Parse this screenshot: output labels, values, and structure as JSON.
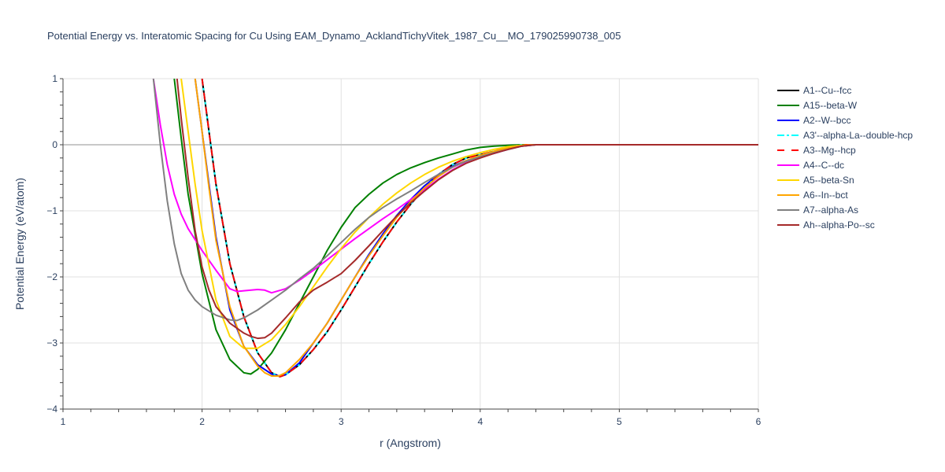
{
  "chart_data": {
    "type": "line",
    "title": "Potential Energy vs. Interatomic Spacing for Cu Using EAM_Dynamo_AcklandTichyVitek_1987_Cu__MO_179025990738_005",
    "xlabel": "r (Angstrom)",
    "ylabel": "Potential Energy (eV/atom)",
    "xlim": [
      1,
      6
    ],
    "ylim": [
      -4,
      1
    ],
    "x_ticks": [
      "1",
      "2",
      "3",
      "4",
      "5",
      "6"
    ],
    "y_ticks": [
      "1",
      "0",
      "−1",
      "−2",
      "−3",
      "−4"
    ],
    "grid": true,
    "legend_position": "right",
    "series": [
      {
        "name": "A1--Cu--fcc",
        "color": "#000000",
        "dash": "solid",
        "x": [
          2.0,
          2.05,
          2.1,
          2.2,
          2.3,
          2.4,
          2.5,
          2.56,
          2.6,
          2.7,
          2.8,
          2.9,
          3.0,
          3.1,
          3.2,
          3.3,
          3.4,
          3.5,
          3.6,
          3.7,
          3.8,
          3.9,
          4.0,
          4.1,
          4.2,
          4.3,
          4.4,
          5.0,
          6.0
        ],
        "y": [
          1.0,
          0.2,
          -0.6,
          -1.8,
          -2.6,
          -3.15,
          -3.45,
          -3.51,
          -3.48,
          -3.33,
          -3.1,
          -2.83,
          -2.5,
          -2.15,
          -1.8,
          -1.47,
          -1.17,
          -0.9,
          -0.66,
          -0.45,
          -0.3,
          -0.2,
          -0.15,
          -0.1,
          -0.04,
          0.0,
          0.0,
          0.0,
          0.0
        ]
      },
      {
        "name": "A15--beta-W",
        "color": "#008000",
        "dash": "solid",
        "x": [
          1.8,
          1.85,
          1.9,
          2.0,
          2.1,
          2.2,
          2.3,
          2.35,
          2.4,
          2.5,
          2.6,
          2.7,
          2.8,
          2.9,
          3.0,
          3.1,
          3.2,
          3.3,
          3.4,
          3.5,
          3.6,
          3.7,
          3.8,
          3.9,
          4.0,
          4.1,
          4.2,
          4.3,
          4.4,
          5.0,
          6.0
        ],
        "y": [
          1.0,
          0.1,
          -0.75,
          -1.95,
          -2.8,
          -3.25,
          -3.45,
          -3.47,
          -3.4,
          -3.15,
          -2.8,
          -2.4,
          -2.0,
          -1.6,
          -1.25,
          -0.95,
          -0.75,
          -0.58,
          -0.45,
          -0.35,
          -0.27,
          -0.2,
          -0.14,
          -0.08,
          -0.04,
          -0.02,
          -0.01,
          0.0,
          0.0,
          0.0,
          0.0
        ]
      },
      {
        "name": "A2--W--bcc",
        "color": "#0000ff",
        "dash": "solid",
        "x": [
          1.95,
          2.0,
          2.05,
          2.1,
          2.2,
          2.3,
          2.4,
          2.5,
          2.55,
          2.6,
          2.7,
          2.8,
          2.9,
          3.0,
          3.1,
          3.2,
          3.3,
          3.4,
          3.5,
          3.6,
          3.7,
          3.8,
          3.9,
          4.0,
          4.1,
          4.2,
          4.3,
          4.4,
          5.0,
          6.0
        ],
        "y": [
          1.0,
          0.2,
          -0.6,
          -1.4,
          -2.5,
          -3.05,
          -3.33,
          -3.47,
          -3.5,
          -3.48,
          -3.3,
          -3.0,
          -2.7,
          -2.35,
          -2.0,
          -1.66,
          -1.35,
          -1.07,
          -0.83,
          -0.62,
          -0.45,
          -0.33,
          -0.24,
          -0.18,
          -0.13,
          -0.07,
          -0.02,
          0.0,
          0.0,
          0.0
        ]
      },
      {
        "name": "A3'--alpha-La--double-hcp",
        "color": "#00ffff",
        "dash": "dashdot",
        "x": [
          2.0,
          2.05,
          2.1,
          2.2,
          2.3,
          2.4,
          2.5,
          2.56,
          2.6,
          2.7,
          2.8,
          2.9,
          3.0,
          3.1,
          3.2,
          3.3,
          3.4,
          3.5,
          3.6,
          3.7,
          3.8,
          3.9,
          4.0,
          4.1,
          4.2,
          4.3,
          4.4,
          5.0,
          6.0
        ],
        "y": [
          1.0,
          0.2,
          -0.6,
          -1.8,
          -2.6,
          -3.15,
          -3.45,
          -3.51,
          -3.48,
          -3.33,
          -3.1,
          -2.83,
          -2.5,
          -2.15,
          -1.8,
          -1.47,
          -1.17,
          -0.9,
          -0.66,
          -0.45,
          -0.3,
          -0.2,
          -0.15,
          -0.1,
          -0.04,
          0.0,
          0.0,
          0.0,
          0.0
        ]
      },
      {
        "name": "A3--Mg--hcp",
        "color": "#ff0000",
        "dash": "dash",
        "x": [
          2.0,
          2.05,
          2.1,
          2.2,
          2.3,
          2.4,
          2.5,
          2.56,
          2.6,
          2.7,
          2.8,
          2.9,
          3.0,
          3.1,
          3.2,
          3.3,
          3.4,
          3.5,
          3.6,
          3.7,
          3.8,
          3.9,
          4.0,
          4.1,
          4.2,
          4.3,
          4.4,
          5.0,
          6.0
        ],
        "y": [
          1.0,
          0.2,
          -0.6,
          -1.8,
          -2.6,
          -3.15,
          -3.45,
          -3.51,
          -3.48,
          -3.33,
          -3.1,
          -2.83,
          -2.5,
          -2.15,
          -1.8,
          -1.47,
          -1.17,
          -0.9,
          -0.66,
          -0.45,
          -0.3,
          -0.2,
          -0.15,
          -0.1,
          -0.04,
          0.0,
          0.0,
          0.0,
          0.0
        ]
      },
      {
        "name": "A4--C--dc",
        "color": "#ff00ff",
        "dash": "solid",
        "x": [
          1.65,
          1.7,
          1.75,
          1.8,
          1.85,
          1.9,
          2.0,
          2.1,
          2.2,
          2.25,
          2.3,
          2.4,
          2.45,
          2.5,
          2.6,
          2.7,
          2.8,
          2.9,
          3.0,
          3.1,
          3.2,
          3.3,
          3.4,
          3.5,
          3.6,
          3.7,
          3.8,
          3.9,
          4.0,
          4.1,
          4.2,
          4.3,
          4.4,
          5.0,
          6.0
        ],
        "y": [
          1.0,
          0.3,
          -0.3,
          -0.75,
          -1.05,
          -1.27,
          -1.6,
          -1.9,
          -2.18,
          -2.22,
          -2.21,
          -2.19,
          -2.2,
          -2.24,
          -2.18,
          -2.05,
          -1.9,
          -1.74,
          -1.58,
          -1.42,
          -1.27,
          -1.12,
          -0.98,
          -0.83,
          -0.68,
          -0.52,
          -0.38,
          -0.27,
          -0.19,
          -0.12,
          -0.06,
          -0.01,
          0.0,
          0.0,
          0.0
        ]
      },
      {
        "name": "A5--beta-Sn",
        "color": "#ffd700",
        "dash": "solid",
        "x": [
          1.85,
          1.9,
          1.95,
          2.0,
          2.1,
          2.2,
          2.3,
          2.4,
          2.5,
          2.6,
          2.7,
          2.8,
          2.9,
          3.0,
          3.1,
          3.2,
          3.3,
          3.4,
          3.5,
          3.6,
          3.7,
          3.8,
          3.9,
          4.0,
          4.1,
          4.2,
          4.3,
          4.4,
          5.0,
          6.0
        ],
        "y": [
          1.0,
          0.2,
          -0.6,
          -1.3,
          -2.35,
          -2.9,
          -3.08,
          -3.08,
          -2.95,
          -2.72,
          -2.45,
          -2.15,
          -1.85,
          -1.57,
          -1.32,
          -1.1,
          -0.9,
          -0.73,
          -0.58,
          -0.45,
          -0.34,
          -0.25,
          -0.18,
          -0.12,
          -0.07,
          -0.03,
          -0.01,
          0.0,
          0.0,
          0.0
        ]
      },
      {
        "name": "A6--In--bct",
        "color": "#ffa500",
        "dash": "solid",
        "x": [
          1.95,
          2.0,
          2.05,
          2.1,
          2.2,
          2.3,
          2.4,
          2.45,
          2.5,
          2.55,
          2.6,
          2.7,
          2.8,
          2.9,
          3.0,
          3.1,
          3.2,
          3.3,
          3.4,
          3.5,
          3.6,
          3.7,
          3.8,
          3.9,
          4.0,
          4.1,
          4.2,
          4.3,
          4.4,
          5.0,
          6.0
        ],
        "y": [
          1.0,
          0.2,
          -0.65,
          -1.45,
          -2.45,
          -3.05,
          -3.35,
          -3.45,
          -3.5,
          -3.5,
          -3.45,
          -3.25,
          -3.0,
          -2.7,
          -2.35,
          -2.0,
          -1.68,
          -1.38,
          -1.1,
          -0.86,
          -0.65,
          -0.48,
          -0.34,
          -0.24,
          -0.16,
          -0.1,
          -0.05,
          -0.01,
          0.0,
          0.0,
          0.0
        ]
      },
      {
        "name": "A7--alpha-As",
        "color": "#808080",
        "dash": "solid",
        "x": [
          1.65,
          1.7,
          1.75,
          1.8,
          1.85,
          1.9,
          1.95,
          2.0,
          2.1,
          2.2,
          2.25,
          2.3,
          2.4,
          2.5,
          2.6,
          2.7,
          2.8,
          2.9,
          3.0,
          3.1,
          3.2,
          3.3,
          3.4,
          3.5,
          3.6,
          3.7,
          3.8,
          3.9,
          4.0,
          4.1,
          4.2,
          4.3,
          4.4,
          5.0,
          6.0
        ],
        "y": [
          1.0,
          0.0,
          -0.85,
          -1.5,
          -1.95,
          -2.2,
          -2.35,
          -2.45,
          -2.58,
          -2.65,
          -2.66,
          -2.62,
          -2.5,
          -2.35,
          -2.2,
          -2.03,
          -1.87,
          -1.68,
          -1.48,
          -1.28,
          -1.1,
          -0.95,
          -0.82,
          -0.7,
          -0.57,
          -0.45,
          -0.34,
          -0.25,
          -0.18,
          -0.12,
          -0.07,
          -0.02,
          0.0,
          0.0,
          0.0
        ]
      },
      {
        "name": "Ah--alpha-Po--sc",
        "color": "#a52a2a",
        "dash": "solid",
        "x": [
          1.82,
          1.85,
          1.9,
          1.95,
          2.0,
          2.05,
          2.1,
          2.2,
          2.3,
          2.35,
          2.4,
          2.45,
          2.5,
          2.6,
          2.7,
          2.8,
          2.9,
          3.0,
          3.1,
          3.2,
          3.3,
          3.4,
          3.5,
          3.6,
          3.7,
          3.8,
          3.9,
          4.0,
          4.1,
          4.2,
          4.3,
          4.4,
          5.0,
          6.0
        ],
        "y": [
          1.0,
          0.4,
          -0.5,
          -1.3,
          -1.85,
          -2.2,
          -2.45,
          -2.7,
          -2.85,
          -2.9,
          -2.93,
          -2.92,
          -2.85,
          -2.62,
          -2.38,
          -2.2,
          -2.08,
          -1.95,
          -1.75,
          -1.53,
          -1.3,
          -1.08,
          -0.88,
          -0.7,
          -0.53,
          -0.39,
          -0.28,
          -0.2,
          -0.13,
          -0.07,
          -0.02,
          0.0,
          0.0,
          0.0
        ]
      }
    ]
  }
}
